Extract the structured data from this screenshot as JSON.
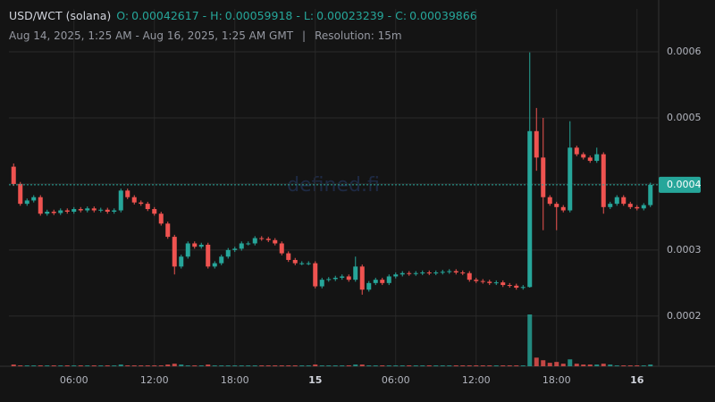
{
  "chart_data": {
    "type": "candlestick",
    "title": "USD/WCT (solana)",
    "ohlc_legend": [
      {
        "label": "O:",
        "value": 0.00042617
      },
      {
        "label": "H:",
        "value": 0.00059918
      },
      {
        "label": "L:",
        "value": 0.00023239
      },
      {
        "label": "C:",
        "value": 0.00039866
      }
    ],
    "ohlc_separator": "-",
    "subtitle": "Aug 14, 2025, 1:25 AM - Aug 16, 2025, 1:25 AM GMT",
    "subtitle_separator": "|",
    "resolution": "Resolution: 15m",
    "watermark": "defined.fi",
    "up_color": "#26a69a",
    "down_color": "#ef5350",
    "grid": true,
    "xlim": [
      "2025-08-14 01:25",
      "2025-08-16 01:25"
    ],
    "xticks": [
      {
        "value": "2025-08-14 06:00",
        "label": "06:00"
      },
      {
        "value": "2025-08-14 12:00",
        "label": "12:00"
      },
      {
        "value": "2025-08-14 18:00",
        "label": "18:00"
      },
      {
        "value": "2025-08-15 00:00",
        "label": "15"
      },
      {
        "value": "2025-08-15 06:00",
        "label": "06:00"
      },
      {
        "value": "2025-08-15 12:00",
        "label": "12:00"
      },
      {
        "value": "2025-08-15 18:00",
        "label": "18:00"
      },
      {
        "value": "2025-08-16 00:00",
        "label": "16"
      }
    ],
    "ylim": [
      0.000124,
      0.000665
    ],
    "yticks": [
      0.0002,
      0.0003,
      0.0004,
      0.0005,
      0.0006
    ],
    "last_price": {
      "value": 0.00039866,
      "label": "0.0004"
    },
    "x": [
      "2025-08-14 01:30",
      "2025-08-14 02:00",
      "2025-08-14 02:30",
      "2025-08-14 03:00",
      "2025-08-14 03:30",
      "2025-08-14 04:00",
      "2025-08-14 04:30",
      "2025-08-14 05:00",
      "2025-08-14 05:30",
      "2025-08-14 06:00",
      "2025-08-14 06:30",
      "2025-08-14 07:00",
      "2025-08-14 07:30",
      "2025-08-14 08:00",
      "2025-08-14 08:30",
      "2025-08-14 09:00",
      "2025-08-14 09:30",
      "2025-08-14 10:00",
      "2025-08-14 10:30",
      "2025-08-14 11:00",
      "2025-08-14 11:30",
      "2025-08-14 12:00",
      "2025-08-14 12:30",
      "2025-08-14 13:00",
      "2025-08-14 13:30",
      "2025-08-14 14:00",
      "2025-08-14 14:30",
      "2025-08-14 15:00",
      "2025-08-14 15:30",
      "2025-08-14 16:00",
      "2025-08-14 16:30",
      "2025-08-14 17:00",
      "2025-08-14 17:30",
      "2025-08-14 18:00",
      "2025-08-14 18:30",
      "2025-08-14 19:00",
      "2025-08-14 19:30",
      "2025-08-14 20:00",
      "2025-08-14 20:30",
      "2025-08-14 21:00",
      "2025-08-14 21:30",
      "2025-08-14 22:00",
      "2025-08-14 22:30",
      "2025-08-14 23:00",
      "2025-08-14 23:30",
      "2025-08-15 00:00",
      "2025-08-15 00:30",
      "2025-08-15 01:00",
      "2025-08-15 01:30",
      "2025-08-15 02:00",
      "2025-08-15 02:30",
      "2025-08-15 03:00",
      "2025-08-15 03:30",
      "2025-08-15 04:00",
      "2025-08-15 04:30",
      "2025-08-15 05:00",
      "2025-08-15 05:30",
      "2025-08-15 06:00",
      "2025-08-15 06:30",
      "2025-08-15 07:00",
      "2025-08-15 07:30",
      "2025-08-15 08:00",
      "2025-08-15 08:30",
      "2025-08-15 09:00",
      "2025-08-15 09:30",
      "2025-08-15 10:00",
      "2025-08-15 10:30",
      "2025-08-15 11:00",
      "2025-08-15 11:30",
      "2025-08-15 12:00",
      "2025-08-15 12:30",
      "2025-08-15 13:00",
      "2025-08-15 13:30",
      "2025-08-15 14:00",
      "2025-08-15 14:30",
      "2025-08-15 15:00",
      "2025-08-15 15:30",
      "2025-08-15 16:00",
      "2025-08-15 16:30",
      "2025-08-15 17:00",
      "2025-08-15 17:30",
      "2025-08-15 18:00",
      "2025-08-15 18:30",
      "2025-08-15 19:00",
      "2025-08-15 19:30",
      "2025-08-15 20:00",
      "2025-08-15 20:30",
      "2025-08-15 21:00",
      "2025-08-15 21:30",
      "2025-08-15 22:00",
      "2025-08-15 22:30",
      "2025-08-15 23:00",
      "2025-08-15 23:30",
      "2025-08-16 00:00",
      "2025-08-16 00:30",
      "2025-08-16 01:00"
    ],
    "open": [
      0.00042617,
      0.0004,
      0.00037,
      0.000375,
      0.00038,
      0.000355,
      0.000358,
      0.000356,
      0.00036,
      0.000358,
      0.000362,
      0.00036,
      0.000363,
      0.00036,
      0.000361,
      0.000358,
      0.00036,
      0.00039,
      0.00038,
      0.000372,
      0.00037,
      0.000362,
      0.000355,
      0.00034,
      0.00032,
      0.000275,
      0.00029,
      0.00031,
      0.000305,
      0.000308,
      0.000275,
      0.00028,
      0.00029,
      0.0003,
      0.000302,
      0.00031,
      0.00031,
      0.000318,
      0.000317,
      0.000315,
      0.00031,
      0.000295,
      0.000285,
      0.00028,
      0.00028,
      0.00028,
      0.000245,
      0.000255,
      0.000256,
      0.000258,
      0.00026,
      0.000255,
      0.000275,
      0.00024,
      0.00025,
      0.000255,
      0.00025,
      0.00026,
      0.000263,
      0.000265,
      0.000264,
      0.000265,
      0.000266,
      0.000265,
      0.000266,
      0.000267,
      0.000268,
      0.000266,
      0.000265,
      0.000255,
      0.000253,
      0.000252,
      0.00025,
      0.000251,
      0.000247,
      0.000246,
      0.000243,
      0.000244,
      0.00048,
      0.00044,
      0.00038,
      0.00037,
      0.000365,
      0.00036,
      0.000455,
      0.000445,
      0.00044,
      0.000435,
      0.000445,
      0.000365,
      0.00037,
      0.00038,
      0.00037,
      0.000365,
      0.000363,
      0.000368
    ],
    "high": [
      0.000431,
      0.000403,
      0.000378,
      0.000383,
      0.000383,
      0.000361,
      0.000361,
      0.000363,
      0.000363,
      0.000365,
      0.000365,
      0.000366,
      0.000366,
      0.000364,
      0.000364,
      0.000363,
      0.000393,
      0.000393,
      0.000383,
      0.000375,
      0.000373,
      0.000365,
      0.000358,
      0.000343,
      0.000323,
      0.000293,
      0.000313,
      0.000313,
      0.000311,
      0.000311,
      0.000283,
      0.000293,
      0.000303,
      0.000305,
      0.000313,
      0.000313,
      0.000321,
      0.000321,
      0.00032,
      0.000318,
      0.000313,
      0.000298,
      0.000288,
      0.000283,
      0.000283,
      0.000283,
      0.000258,
      0.000259,
      0.000261,
      0.000263,
      0.000263,
      0.00029,
      0.000278,
      0.000253,
      0.000258,
      0.000258,
      0.000263,
      0.000266,
      0.000268,
      0.000268,
      0.000268,
      0.000269,
      0.000269,
      0.000269,
      0.00027,
      0.000271,
      0.000271,
      0.000269,
      0.000268,
      0.000258,
      0.000256,
      0.000255,
      0.000254,
      0.000254,
      0.00025,
      0.000249,
      0.000247,
      0.00059918,
      0.000515,
      0.0005,
      0.000383,
      0.000373,
      0.000368,
      0.000495,
      0.000458,
      0.000448,
      0.000443,
      0.000455,
      0.000448,
      0.000373,
      0.000383,
      0.000383,
      0.000373,
      0.000368,
      0.000371,
      0.000402
    ],
    "low": [
      0.000397,
      0.000367,
      0.000367,
      0.000372,
      0.000352,
      0.000352,
      0.000353,
      0.000353,
      0.000355,
      0.000355,
      0.000357,
      0.000357,
      0.000357,
      0.000357,
      0.000355,
      0.000355,
      0.000357,
      0.000377,
      0.000369,
      0.000367,
      0.000359,
      0.000352,
      0.000337,
      0.000317,
      0.000263,
      0.000272,
      0.000287,
      0.000302,
      0.000302,
      0.000272,
      0.000272,
      0.000277,
      0.000287,
      0.000297,
      0.000299,
      0.000307,
      0.000307,
      0.000314,
      0.000312,
      0.000307,
      0.000292,
      0.000282,
      0.000277,
      0.000277,
      0.000277,
      0.000242,
      0.000242,
      0.000252,
      0.000253,
      0.000255,
      0.000252,
      0.000252,
      0.00023239,
      0.000237,
      0.000247,
      0.000247,
      0.000247,
      0.000257,
      0.00026,
      0.000261,
      0.000261,
      0.000262,
      0.000262,
      0.000262,
      0.000263,
      0.000264,
      0.000263,
      0.000262,
      0.000252,
      0.00025,
      0.000249,
      0.000247,
      0.000247,
      0.000244,
      0.000243,
      0.00024,
      0.00024,
      0.000243,
      0.00042,
      0.00033,
      0.000367,
      0.00033,
      0.000357,
      0.000357,
      0.000442,
      0.000437,
      0.000432,
      0.000432,
      0.000355,
      0.000362,
      0.000367,
      0.000367,
      0.000362,
      0.00036,
      0.00036,
      0.000365
    ],
    "close": [
      0.0004,
      0.00037,
      0.000375,
      0.00038,
      0.000355,
      0.000358,
      0.000356,
      0.00036,
      0.000358,
      0.000362,
      0.00036,
      0.000363,
      0.00036,
      0.000361,
      0.000358,
      0.00036,
      0.00039,
      0.00038,
      0.000372,
      0.00037,
      0.000362,
      0.000355,
      0.00034,
      0.00032,
      0.000275,
      0.00029,
      0.00031,
      0.000305,
      0.000308,
      0.000275,
      0.00028,
      0.00029,
      0.0003,
      0.000302,
      0.00031,
      0.00031,
      0.000318,
      0.000317,
      0.000315,
      0.00031,
      0.000295,
      0.000285,
      0.00028,
      0.00028,
      0.00028,
      0.000245,
      0.000255,
      0.000256,
      0.000258,
      0.00026,
      0.000255,
      0.000275,
      0.00024,
      0.00025,
      0.000255,
      0.00025,
      0.00026,
      0.000263,
      0.000265,
      0.000264,
      0.000265,
      0.000266,
      0.000265,
      0.000266,
      0.000267,
      0.000268,
      0.000266,
      0.000265,
      0.000255,
      0.000253,
      0.000252,
      0.00025,
      0.000251,
      0.000247,
      0.000246,
      0.000243,
      0.000244,
      0.00048,
      0.00044,
      0.00038,
      0.00037,
      0.000365,
      0.00036,
      0.000455,
      0.000445,
      0.00044,
      0.000435,
      0.000445,
      0.000365,
      0.00037,
      0.00038,
      0.00037,
      0.000365,
      0.000363,
      0.000368,
      0.00039866
    ],
    "volume": [
      2,
      1,
      1,
      1,
      1,
      1,
      1,
      1,
      1,
      1,
      1,
      1,
      1,
      1,
      1,
      1,
      2,
      1,
      1,
      1,
      1,
      1,
      1,
      2,
      3,
      2,
      1,
      1,
      1,
      2,
      1,
      1,
      1,
      1,
      1,
      1,
      1,
      1,
      1,
      1,
      1,
      1,
      1,
      1,
      1,
      2,
      1,
      1,
      1,
      1,
      1,
      2,
      2,
      1,
      1,
      1,
      1,
      1,
      1,
      1,
      1,
      1,
      1,
      1,
      1,
      1,
      1,
      1,
      1,
      1,
      1,
      1,
      1,
      1,
      1,
      1,
      1,
      60,
      10,
      7,
      4,
      5,
      3,
      8,
      3,
      2,
      2,
      2,
      3,
      2,
      1,
      1,
      1,
      1,
      1,
      2
    ]
  }
}
